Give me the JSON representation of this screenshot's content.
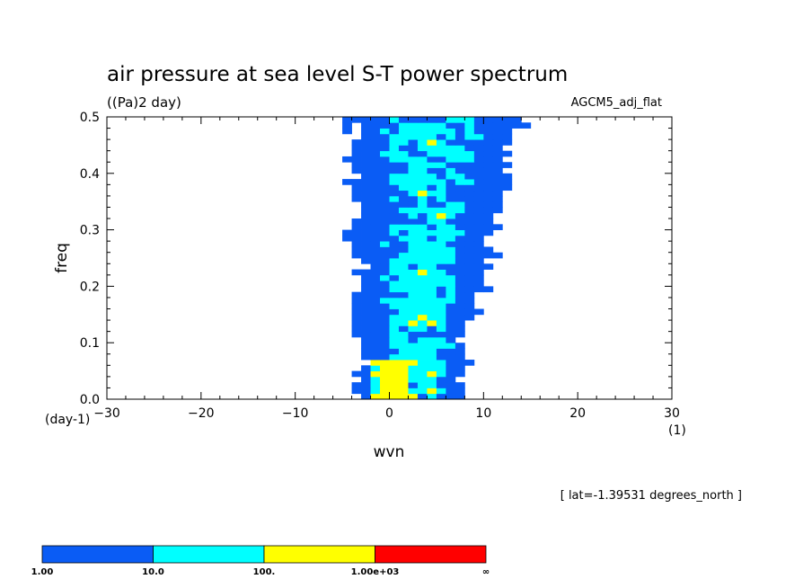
{
  "chart_data": {
    "type": "heatmap",
    "title": "air pressure at sea level S-T power spectrum",
    "subtitle": "((Pa)2 day)",
    "model": "AGCM5_adj_flat",
    "xlabel": "wvn",
    "ylabel": "freq",
    "x_unit": "(1)",
    "y_unit": "(day-1)",
    "xlim": [
      -30,
      30
    ],
    "ylim": [
      0.0,
      0.5
    ],
    "x_ticks": [
      "-30",
      "-20",
      "-10",
      "0",
      "10",
      "20",
      "30"
    ],
    "y_ticks": [
      "0.0",
      "0.1",
      "0.2",
      "0.3",
      "0.4",
      "0.5"
    ],
    "annotation": "[ lat=-1.39531 degrees_north ]",
    "levels": [
      {
        "from": "1.00",
        "to": "10.0",
        "color": "#0a5cf5"
      },
      {
        "from": "10.0",
        "to": "100.",
        "color": "#00ffff"
      },
      {
        "from": "100.",
        "to": "1.00e+03",
        "color": "#ffff00"
      },
      {
        "from": "1.00e+03",
        "to": "∞",
        "color": "#ff0000"
      }
    ],
    "colorbar_labels": [
      "1.00",
      "10.0",
      "100.",
      "1.00e+03",
      "∞"
    ]
  }
}
